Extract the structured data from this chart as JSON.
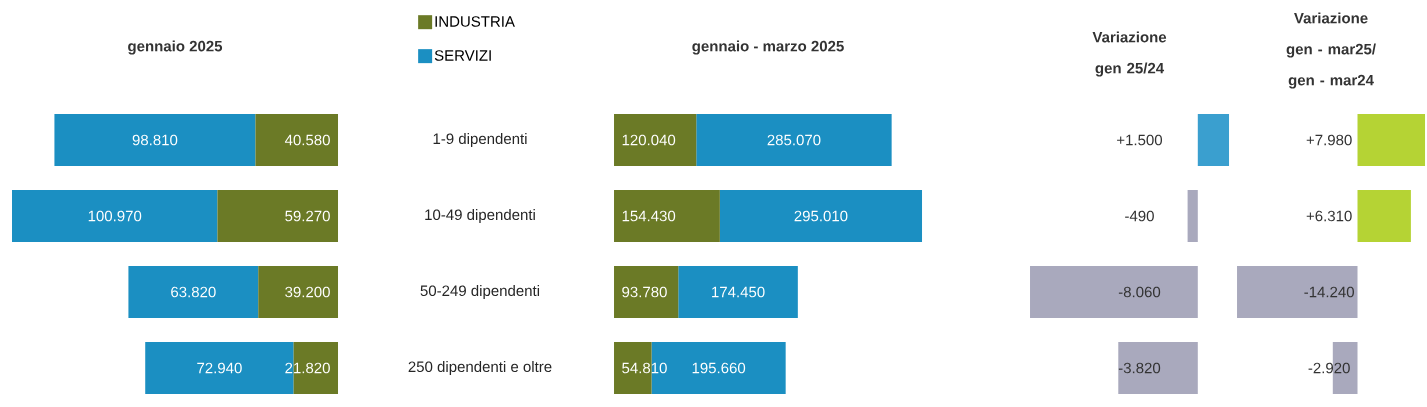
{
  "chart_data": [
    {
      "type": "bar",
      "orientation": "horizontal",
      "stacked": true,
      "title": "gennaio 2025",
      "categories": [
        "1-9 dipendenti",
        "10-49 dipendenti",
        "50-249 dipendenti",
        "250 dipendenti e oltre"
      ],
      "legend": "top right",
      "tick_labels": "y",
      "series": [
        {
          "name": "INDUSTRIA",
          "color": "#6b7a26",
          "values": [
            40580,
            59270,
            39200,
            21820
          ],
          "value_labels": [
            "40.580",
            "59.270",
            "39.200",
            "21.820"
          ]
        },
        {
          "name": "SERVIZI",
          "color": "#1b8fc2",
          "values": [
            98810,
            100970,
            63820,
            72940
          ],
          "value_labels": [
            "98.810",
            "100.970",
            "63.820",
            "72.940"
          ]
        }
      ]
    },
    {
      "type": "bar",
      "orientation": "horizontal",
      "stacked": true,
      "title": "gennaio - marzo 2025",
      "categories": [
        null,
        null,
        null,
        null
      ],
      "tick_labels": false,
      "series": [
        {
          "color": "#6b7a26",
          "values": [
            120040,
            154430,
            93780,
            54810
          ],
          "value_labels": [
            "120.040",
            "154.430",
            "93.780",
            "54.810"
          ]
        },
        {
          "color": "#1b8fc2",
          "values": [
            285070,
            295010,
            174450,
            195660
          ],
          "value_labels": [
            "285.070",
            "295.010",
            "174.450",
            "195.660"
          ]
        }
      ]
    },
    {
      "type": "bar",
      "orientation": "horizontal",
      "title": "Variazione gen 25/24",
      "categories": [
        null,
        null,
        null,
        null
      ],
      "tick_labels": false,
      "values": [
        1500,
        -490,
        -8060,
        -3820
      ],
      "colors": [
        "#3a9fcf",
        "#a9a9bd",
        "#a9a9bd",
        "#a9a9bd"
      ],
      "value_labels": [
        "+1.500",
        "-490",
        "-8.060",
        "-3.820"
      ]
    },
    {
      "type": "bar",
      "orientation": "horizontal",
      "title": "Variazione gen - mar25/ gen - mar24",
      "categories": [
        null,
        null,
        null,
        null
      ],
      "tick_labels": false,
      "values": [
        7980,
        6310,
        -14240,
        -2920
      ],
      "colors": [
        "#b5d334",
        "#b5d334",
        "#a9a9bd",
        "#a9a9bd"
      ],
      "value_labels": [
        "+7.980",
        "+6.310",
        "-14.240",
        "-2.920"
      ]
    }
  ]
}
